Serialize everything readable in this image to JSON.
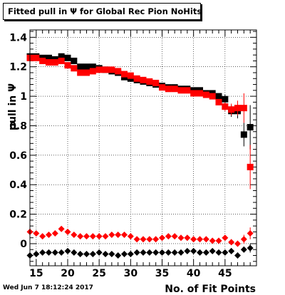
{
  "title": "Fitted pull in Ψ  for Global Rec Pion NoHits",
  "footer": "Wed Jun  7 18:12:24 2017",
  "chart_data": {
    "type": "scatter",
    "title": "Fitted pull in Ψ  for Global Rec Pion NoHits",
    "xlabel": "No. of Fit Points",
    "ylabel": "pull in Ψ",
    "xlim": [
      14,
      50
    ],
    "ylim": [
      -0.15,
      1.45
    ],
    "grid": true,
    "x_ticks": [
      15,
      20,
      25,
      30,
      35,
      40,
      45
    ],
    "x_tick_labels": [
      "15",
      "20",
      "25",
      "30",
      "35",
      "40",
      "45"
    ],
    "y_ticks": [
      0,
      0.2,
      0.4,
      0.6,
      0.8,
      1,
      1.2,
      1.4
    ],
    "y_tick_labels": [
      "0",
      "0.2",
      "0.4",
      "0.6",
      "0.8",
      "1",
      "1.2",
      "1.4"
    ],
    "series": [
      {
        "marker": "square",
        "color": "#000000",
        "x": [
          14,
          15,
          16,
          17,
          18,
          19,
          20,
          21,
          22,
          23,
          24,
          25,
          26,
          27,
          28,
          29,
          30,
          31,
          32,
          33,
          34,
          35,
          36,
          37,
          38,
          39,
          40,
          41,
          42,
          43,
          44,
          45,
          46,
          47,
          48,
          49
        ],
        "y": [
          1.27,
          1.27,
          1.26,
          1.26,
          1.25,
          1.27,
          1.26,
          1.24,
          1.2,
          1.2,
          1.2,
          1.19,
          1.18,
          1.17,
          1.16,
          1.13,
          1.12,
          1.11,
          1.1,
          1.09,
          1.08,
          1.07,
          1.06,
          1.06,
          1.05,
          1.05,
          1.04,
          1.04,
          1.02,
          1.02,
          1.0,
          0.98,
          0.9,
          0.9,
          0.74,
          0.79
        ],
        "err": [
          0.02,
          0.02,
          0.02,
          0.02,
          0.02,
          0.02,
          0.02,
          0.02,
          0.02,
          0.02,
          0.02,
          0.02,
          0.02,
          0.02,
          0.02,
          0.02,
          0.02,
          0.02,
          0.02,
          0.02,
          0.02,
          0.02,
          0.02,
          0.02,
          0.02,
          0.02,
          0.02,
          0.02,
          0.02,
          0.02,
          0.02,
          0.03,
          0.04,
          0.05,
          0.08,
          0.15
        ]
      },
      {
        "marker": "square",
        "color": "#ff0000",
        "x": [
          14,
          15,
          16,
          17,
          18,
          19,
          20,
          21,
          22,
          23,
          24,
          25,
          26,
          27,
          28,
          29,
          30,
          31,
          32,
          33,
          34,
          35,
          36,
          37,
          38,
          39,
          40,
          41,
          42,
          43,
          44,
          45,
          46,
          47,
          48,
          49
        ],
        "y": [
          1.26,
          1.26,
          1.24,
          1.23,
          1.23,
          1.24,
          1.21,
          1.19,
          1.16,
          1.16,
          1.17,
          1.18,
          1.18,
          1.18,
          1.17,
          1.15,
          1.14,
          1.12,
          1.11,
          1.1,
          1.09,
          1.06,
          1.05,
          1.05,
          1.04,
          1.04,
          1.02,
          1.02,
          1.01,
          1.0,
          0.96,
          0.93,
          0.91,
          0.92,
          0.92,
          0.52
        ],
        "err": [
          0.02,
          0.02,
          0.02,
          0.02,
          0.02,
          0.02,
          0.02,
          0.02,
          0.02,
          0.02,
          0.02,
          0.02,
          0.02,
          0.02,
          0.02,
          0.02,
          0.02,
          0.02,
          0.02,
          0.02,
          0.02,
          0.02,
          0.02,
          0.02,
          0.02,
          0.02,
          0.02,
          0.02,
          0.02,
          0.02,
          0.02,
          0.03,
          0.04,
          0.05,
          0.1,
          0.15
        ]
      },
      {
        "marker": "diamond",
        "color": "#ff0000",
        "x": [
          14,
          15,
          16,
          17,
          18,
          19,
          20,
          21,
          22,
          23,
          24,
          25,
          26,
          27,
          28,
          29,
          30,
          31,
          32,
          33,
          34,
          35,
          36,
          37,
          38,
          39,
          40,
          41,
          42,
          43,
          44,
          45,
          46,
          47,
          48,
          49
        ],
        "y": [
          0.08,
          0.07,
          0.05,
          0.06,
          0.07,
          0.1,
          0.08,
          0.06,
          0.05,
          0.05,
          0.05,
          0.05,
          0.05,
          0.06,
          0.06,
          0.06,
          0.05,
          0.03,
          0.03,
          0.03,
          0.03,
          0.04,
          0.05,
          0.05,
          0.04,
          0.04,
          0.03,
          0.03,
          0.03,
          0.02,
          0.02,
          0.04,
          0.01,
          0.0,
          0.03,
          0.07
        ],
        "err": [
          0.01,
          0.01,
          0.01,
          0.01,
          0.01,
          0.01,
          0.01,
          0.01,
          0.01,
          0.01,
          0.01,
          0.01,
          0.01,
          0.01,
          0.01,
          0.01,
          0.01,
          0.01,
          0.01,
          0.01,
          0.01,
          0.01,
          0.01,
          0.01,
          0.01,
          0.01,
          0.01,
          0.01,
          0.01,
          0.01,
          0.01,
          0.01,
          0.02,
          0.02,
          0.03,
          0.04
        ]
      },
      {
        "marker": "diamond",
        "color": "#000000",
        "x": [
          14,
          15,
          16,
          17,
          18,
          19,
          20,
          21,
          22,
          23,
          24,
          25,
          26,
          27,
          28,
          29,
          30,
          31,
          32,
          33,
          34,
          35,
          36,
          37,
          38,
          39,
          40,
          41,
          42,
          43,
          44,
          45,
          46,
          47,
          48,
          49
        ],
        "y": [
          -0.08,
          -0.07,
          -0.06,
          -0.06,
          -0.06,
          -0.06,
          -0.05,
          -0.06,
          -0.07,
          -0.07,
          -0.07,
          -0.06,
          -0.07,
          -0.07,
          -0.08,
          -0.07,
          -0.07,
          -0.06,
          -0.06,
          -0.06,
          -0.06,
          -0.06,
          -0.06,
          -0.06,
          -0.06,
          -0.05,
          -0.05,
          -0.06,
          -0.06,
          -0.05,
          -0.06,
          -0.06,
          -0.05,
          -0.08,
          -0.04,
          -0.03
        ],
        "err": [
          0.01,
          0.01,
          0.01,
          0.01,
          0.01,
          0.01,
          0.01,
          0.01,
          0.01,
          0.01,
          0.01,
          0.01,
          0.01,
          0.01,
          0.01,
          0.01,
          0.01,
          0.01,
          0.01,
          0.01,
          0.01,
          0.01,
          0.01,
          0.01,
          0.01,
          0.01,
          0.01,
          0.01,
          0.01,
          0.01,
          0.01,
          0.01,
          0.02,
          0.02,
          0.02,
          0.03
        ]
      }
    ]
  }
}
